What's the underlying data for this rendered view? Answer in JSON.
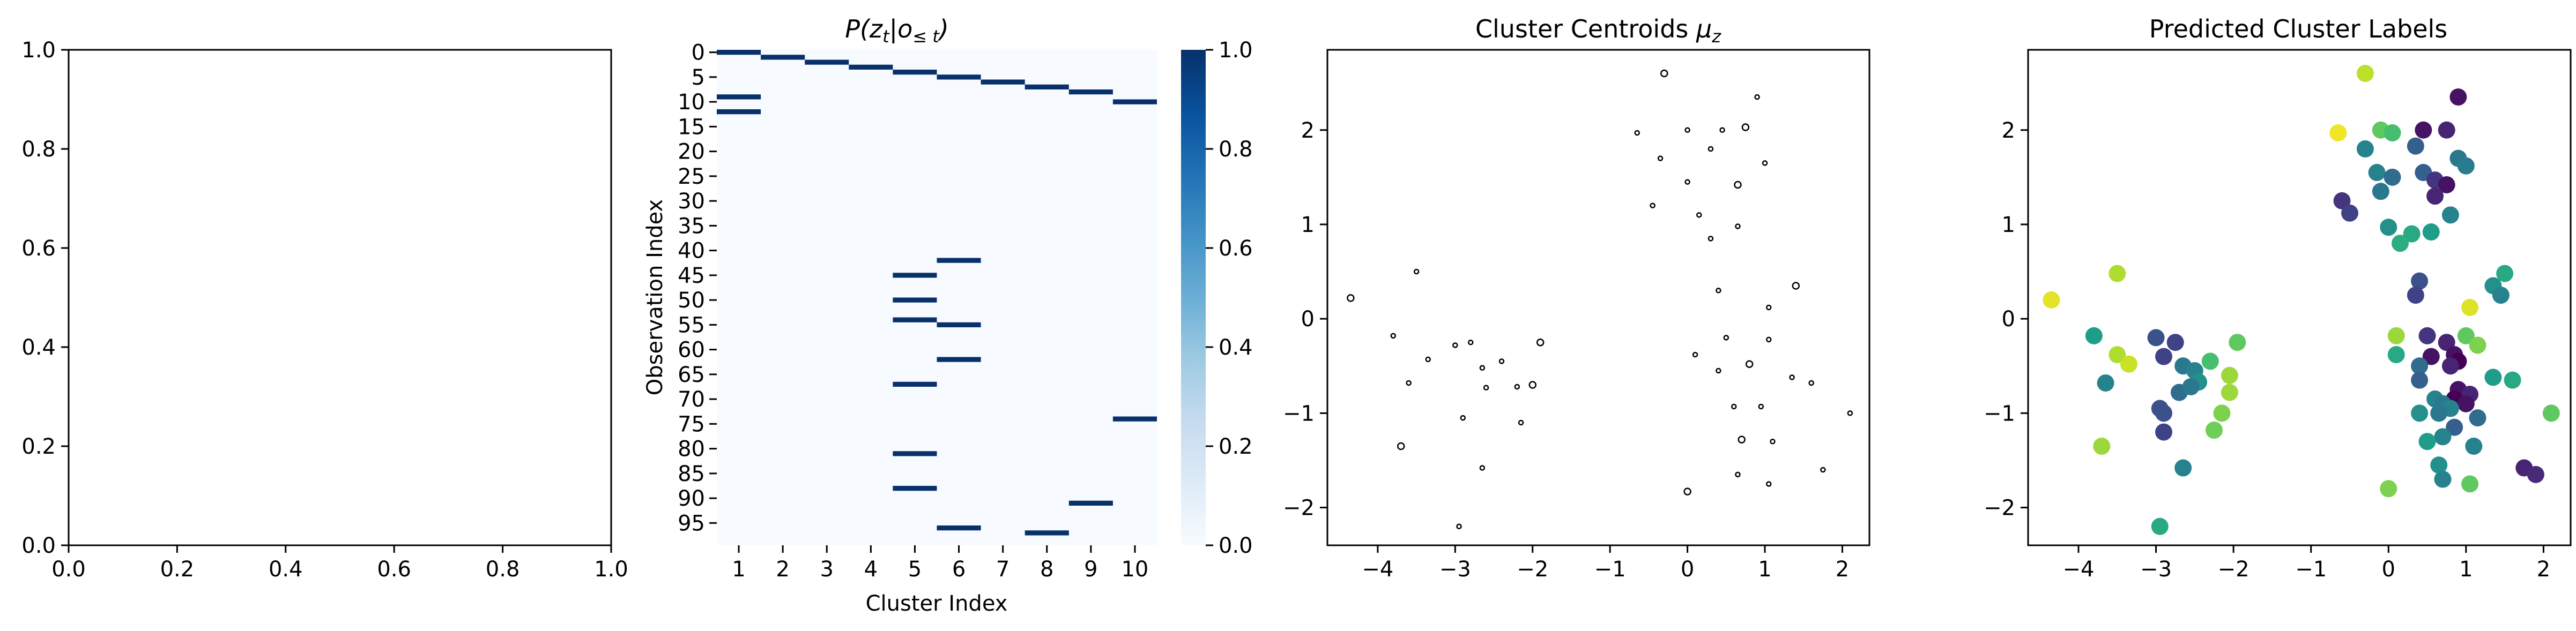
{
  "chart_data": [
    {
      "type": "line",
      "title": "",
      "xlabel": "",
      "ylabel": "",
      "xlim": [
        0,
        1
      ],
      "ylim": [
        0,
        1
      ],
      "xticks": [
        "0.0",
        "0.2",
        "0.4",
        "0.6",
        "0.8",
        "1.0"
      ],
      "yticks": [
        "0.0",
        "0.2",
        "0.4",
        "0.6",
        "0.8",
        "1.0"
      ],
      "series": []
    },
    {
      "type": "heatmap",
      "title": "P(z_t | o_≤t)",
      "title_parts": {
        "p": "P(",
        "z": "z",
        "t1": "t",
        "bar": "|",
        "o": "o",
        "sub": "≤ t",
        "close": ")"
      },
      "xlabel": "Cluster Index",
      "ylabel": "Observation Index",
      "xticks": [
        "1",
        "2",
        "3",
        "4",
        "5",
        "6",
        "7",
        "8",
        "9",
        "10"
      ],
      "yticks": [
        "0",
        "5",
        "10",
        "15",
        "20",
        "25",
        "30",
        "35",
        "40",
        "45",
        "50",
        "55",
        "60",
        "65",
        "70",
        "75",
        "80",
        "85",
        "90",
        "95"
      ],
      "n_rows": 100,
      "colorscale": [
        "#f7fbff",
        "#deebf7",
        "#c6dbef",
        "#9ecae1",
        "#6baed6",
        "#4292c6",
        "#2171b5",
        "#08519c",
        "#08306b"
      ],
      "colorbar_ticks": [
        "0.0",
        "0.2",
        "0.4",
        "0.6",
        "0.8",
        "1.0"
      ],
      "colorbar_range": [
        0,
        1
      ],
      "cells": [
        {
          "row": 0,
          "col": 1,
          "value": 1
        },
        {
          "row": 1,
          "col": 2,
          "value": 1
        },
        {
          "row": 2,
          "col": 3,
          "value": 1
        },
        {
          "row": 3,
          "col": 4,
          "value": 1
        },
        {
          "row": 4,
          "col": 5,
          "value": 1
        },
        {
          "row": 5,
          "col": 6,
          "value": 1
        },
        {
          "row": 6,
          "col": 7,
          "value": 1
        },
        {
          "row": 7,
          "col": 8,
          "value": 1
        },
        {
          "row": 8,
          "col": 9,
          "value": 1
        },
        {
          "row": 9,
          "col": 1,
          "value": 1
        },
        {
          "row": 10,
          "col": 10,
          "value": 1
        },
        {
          "row": 12,
          "col": 1,
          "value": 1
        },
        {
          "row": 42,
          "col": 6,
          "value": 1
        },
        {
          "row": 45,
          "col": 5,
          "value": 1
        },
        {
          "row": 50,
          "col": 5,
          "value": 1
        },
        {
          "row": 54,
          "col": 5,
          "value": 1
        },
        {
          "row": 55,
          "col": 6,
          "value": 1
        },
        {
          "row": 62,
          "col": 6,
          "value": 1
        },
        {
          "row": 67,
          "col": 5,
          "value": 1
        },
        {
          "row": 74,
          "col": 10,
          "value": 1
        },
        {
          "row": 81,
          "col": 5,
          "value": 1
        },
        {
          "row": 88,
          "col": 5,
          "value": 1
        },
        {
          "row": 91,
          "col": 9,
          "value": 1
        },
        {
          "row": 96,
          "col": 6,
          "value": 1
        },
        {
          "row": 97,
          "col": 8,
          "value": 1
        }
      ]
    },
    {
      "type": "scatter",
      "title": "Cluster Centroids μ_z",
      "title_parts": {
        "text": "Cluster Centroids ",
        "mu": "μ",
        "sub": "z"
      },
      "xlim": [
        -4.65,
        2.35
      ],
      "ylim": [
        -2.4,
        2.85
      ],
      "xticks": [
        -4,
        -3,
        -2,
        -1,
        0,
        1,
        2
      ],
      "yticks": [
        -2,
        -1,
        0,
        1,
        2
      ],
      "marker": "hollow-circle",
      "points": [
        [
          -0.3,
          2.6
        ],
        [
          0.9,
          2.35
        ],
        [
          -0.65,
          1.97
        ],
        [
          0.0,
          2.0
        ],
        [
          0.45,
          2.0
        ],
        [
          0.75,
          2.03
        ],
        [
          0.3,
          1.8
        ],
        [
          -0.35,
          1.7
        ],
        [
          1.0,
          1.65
        ],
        [
          0.0,
          1.45
        ],
        [
          0.65,
          1.42
        ],
        [
          -0.45,
          1.2
        ],
        [
          0.15,
          1.1
        ],
        [
          0.65,
          0.98
        ],
        [
          0.3,
          0.85
        ],
        [
          -4.35,
          0.22
        ],
        [
          -3.5,
          0.5
        ],
        [
          -3.8,
          -0.18
        ],
        [
          -3.0,
          -0.28
        ],
        [
          -2.8,
          -0.25
        ],
        [
          -1.9,
          -0.25
        ],
        [
          -3.35,
          -0.43
        ],
        [
          -2.65,
          -0.52
        ],
        [
          -2.4,
          -0.45
        ],
        [
          -2.2,
          -0.72
        ],
        [
          -2.0,
          -0.7
        ],
        [
          -3.6,
          -0.68
        ],
        [
          -2.6,
          -0.73
        ],
        [
          -2.9,
          -1.05
        ],
        [
          -2.15,
          -1.1
        ],
        [
          -3.7,
          -1.35
        ],
        [
          -2.65,
          -1.58
        ],
        [
          -2.95,
          -2.2
        ],
        [
          0.4,
          0.3
        ],
        [
          1.05,
          0.12
        ],
        [
          1.4,
          0.35
        ],
        [
          0.1,
          -0.38
        ],
        [
          0.5,
          -0.2
        ],
        [
          1.05,
          -0.22
        ],
        [
          0.4,
          -0.55
        ],
        [
          0.8,
          -0.48
        ],
        [
          1.35,
          -0.62
        ],
        [
          1.6,
          -0.68
        ],
        [
          0.6,
          -0.93
        ],
        [
          0.95,
          -0.93
        ],
        [
          0.7,
          -1.28
        ],
        [
          1.1,
          -1.3
        ],
        [
          2.1,
          -1.0
        ],
        [
          0.65,
          -1.65
        ],
        [
          1.75,
          -1.6
        ],
        [
          0.0,
          -1.83
        ],
        [
          1.05,
          -1.75
        ]
      ]
    },
    {
      "type": "scatter",
      "title": "Predicted Cluster Labels",
      "xlim": [
        -4.65,
        2.35
      ],
      "ylim": [
        -2.4,
        2.85
      ],
      "xticks": [
        -4,
        -3,
        -2,
        -1,
        0,
        1,
        2
      ],
      "yticks": [
        -2,
        -1,
        0,
        1,
        2
      ],
      "colormap": "viridis",
      "points": [
        {
          "x": -0.3,
          "y": 2.6,
          "label": 0.9
        },
        {
          "x": 0.9,
          "y": 2.35,
          "label": 0.05
        },
        {
          "x": -0.65,
          "y": 1.97,
          "label": 0.98
        },
        {
          "x": -0.1,
          "y": 2.0,
          "label": 0.75
        },
        {
          "x": 0.05,
          "y": 1.97,
          "label": 0.7
        },
        {
          "x": 0.45,
          "y": 2.0,
          "label": 0.05
        },
        {
          "x": 0.75,
          "y": 2.0,
          "label": 0.1
        },
        {
          "x": 0.35,
          "y": 1.83,
          "label": 0.3
        },
        {
          "x": -0.3,
          "y": 1.8,
          "label": 0.45
        },
        {
          "x": 0.9,
          "y": 1.7,
          "label": 0.4
        },
        {
          "x": 1.0,
          "y": 1.62,
          "label": 0.42
        },
        {
          "x": -0.15,
          "y": 1.55,
          "label": 0.45
        },
        {
          "x": 0.05,
          "y": 1.5,
          "label": 0.35
        },
        {
          "x": 0.45,
          "y": 1.55,
          "label": 0.3
        },
        {
          "x": 0.6,
          "y": 1.47,
          "label": 0.15
        },
        {
          "x": 0.75,
          "y": 1.42,
          "label": 0.05
        },
        {
          "x": -0.1,
          "y": 1.35,
          "label": 0.4
        },
        {
          "x": 0.6,
          "y": 1.3,
          "label": 0.1
        },
        {
          "x": -0.6,
          "y": 1.25,
          "label": 0.15
        },
        {
          "x": -0.5,
          "y": 1.12,
          "label": 0.2
        },
        {
          "x": 0.8,
          "y": 1.1,
          "label": 0.45
        },
        {
          "x": 0.0,
          "y": 0.97,
          "label": 0.5
        },
        {
          "x": 0.3,
          "y": 0.9,
          "label": 0.6
        },
        {
          "x": 0.55,
          "y": 0.92,
          "label": 0.55
        },
        {
          "x": 0.15,
          "y": 0.8,
          "label": 0.62
        },
        {
          "x": -4.35,
          "y": 0.2,
          "label": 0.96
        },
        {
          "x": -3.5,
          "y": 0.48,
          "label": 0.88
        },
        {
          "x": -3.8,
          "y": -0.18,
          "label": 0.55
        },
        {
          "x": -3.0,
          "y": -0.2,
          "label": 0.25
        },
        {
          "x": -2.75,
          "y": -0.25,
          "label": 0.2
        },
        {
          "x": -1.95,
          "y": -0.25,
          "label": 0.75
        },
        {
          "x": -3.5,
          "y": -0.38,
          "label": 0.88
        },
        {
          "x": -2.9,
          "y": -0.4,
          "label": 0.2
        },
        {
          "x": -2.65,
          "y": -0.5,
          "label": 0.4
        },
        {
          "x": -2.5,
          "y": -0.55,
          "label": 0.45
        },
        {
          "x": -2.3,
          "y": -0.45,
          "label": 0.7
        },
        {
          "x": -3.35,
          "y": -0.48,
          "label": 0.92
        },
        {
          "x": -2.05,
          "y": -0.6,
          "label": 0.85
        },
        {
          "x": -2.45,
          "y": -0.67,
          "label": 0.5
        },
        {
          "x": -3.65,
          "y": -0.68,
          "label": 0.45
        },
        {
          "x": -2.7,
          "y": -0.78,
          "label": 0.35
        },
        {
          "x": -2.55,
          "y": -0.72,
          "label": 0.4
        },
        {
          "x": -2.05,
          "y": -0.78,
          "label": 0.85
        },
        {
          "x": -2.95,
          "y": -0.95,
          "label": 0.25
        },
        {
          "x": -2.9,
          "y": -1.0,
          "label": 0.25
        },
        {
          "x": -2.15,
          "y": -1.0,
          "label": 0.8
        },
        {
          "x": -2.25,
          "y": -1.18,
          "label": 0.78
        },
        {
          "x": -2.9,
          "y": -1.2,
          "label": 0.2
        },
        {
          "x": -3.7,
          "y": -1.35,
          "label": 0.85
        },
        {
          "x": -2.65,
          "y": -1.58,
          "label": 0.45
        },
        {
          "x": -2.95,
          "y": -2.2,
          "label": 0.6
        },
        {
          "x": 0.4,
          "y": 0.4,
          "label": 0.25
        },
        {
          "x": 0.35,
          "y": 0.25,
          "label": 0.2
        },
        {
          "x": 1.05,
          "y": 0.12,
          "label": 0.95
        },
        {
          "x": 1.5,
          "y": 0.48,
          "label": 0.6
        },
        {
          "x": 1.35,
          "y": 0.35,
          "label": 0.5
        },
        {
          "x": 1.45,
          "y": 0.25,
          "label": 0.45
        },
        {
          "x": 0.1,
          "y": -0.18,
          "label": 0.85
        },
        {
          "x": 0.5,
          "y": -0.18,
          "label": 0.15
        },
        {
          "x": 1.0,
          "y": -0.18,
          "label": 0.75
        },
        {
          "x": 0.75,
          "y": -0.25,
          "label": 0.1
        },
        {
          "x": 1.15,
          "y": -0.28,
          "label": 0.8
        },
        {
          "x": 0.1,
          "y": -0.38,
          "label": 0.6
        },
        {
          "x": 0.55,
          "y": -0.4,
          "label": 0.05
        },
        {
          "x": 0.85,
          "y": -0.38,
          "label": 0.05
        },
        {
          "x": 0.9,
          "y": -0.45,
          "label": 0.0
        },
        {
          "x": 0.4,
          "y": -0.5,
          "label": 0.35
        },
        {
          "x": 0.8,
          "y": -0.5,
          "label": 0.1
        },
        {
          "x": 0.4,
          "y": -0.65,
          "label": 0.3
        },
        {
          "x": 1.35,
          "y": -0.62,
          "label": 0.55
        },
        {
          "x": 1.6,
          "y": -0.65,
          "label": 0.6
        },
        {
          "x": 0.9,
          "y": -0.75,
          "label": 0.05
        },
        {
          "x": 1.05,
          "y": -0.8,
          "label": 0.1
        },
        {
          "x": 0.85,
          "y": -0.85,
          "label": 0.0
        },
        {
          "x": 1.0,
          "y": -0.9,
          "label": 0.05
        },
        {
          "x": 0.6,
          "y": -0.85,
          "label": 0.45
        },
        {
          "x": 0.7,
          "y": -0.9,
          "label": 0.4
        },
        {
          "x": 0.8,
          "y": -0.95,
          "label": 0.45
        },
        {
          "x": 0.65,
          "y": -1.0,
          "label": 0.4
        },
        {
          "x": 0.4,
          "y": -1.0,
          "label": 0.5
        },
        {
          "x": 1.15,
          "y": -1.05,
          "label": 0.35
        },
        {
          "x": 2.1,
          "y": -1.0,
          "label": 0.75
        },
        {
          "x": 0.85,
          "y": -1.15,
          "label": 0.3
        },
        {
          "x": 0.7,
          "y": -1.25,
          "label": 0.45
        },
        {
          "x": 0.5,
          "y": -1.3,
          "label": 0.55
        },
        {
          "x": 1.1,
          "y": -1.35,
          "label": 0.45
        },
        {
          "x": 0.65,
          "y": -1.55,
          "label": 0.5
        },
        {
          "x": 0.7,
          "y": -1.7,
          "label": 0.45
        },
        {
          "x": 1.75,
          "y": -1.58,
          "label": 0.1
        },
        {
          "x": 1.9,
          "y": -1.65,
          "label": 0.12
        },
        {
          "x": 0.0,
          "y": -1.8,
          "label": 0.8
        },
        {
          "x": 1.05,
          "y": -1.75,
          "label": 0.75
        }
      ]
    }
  ]
}
